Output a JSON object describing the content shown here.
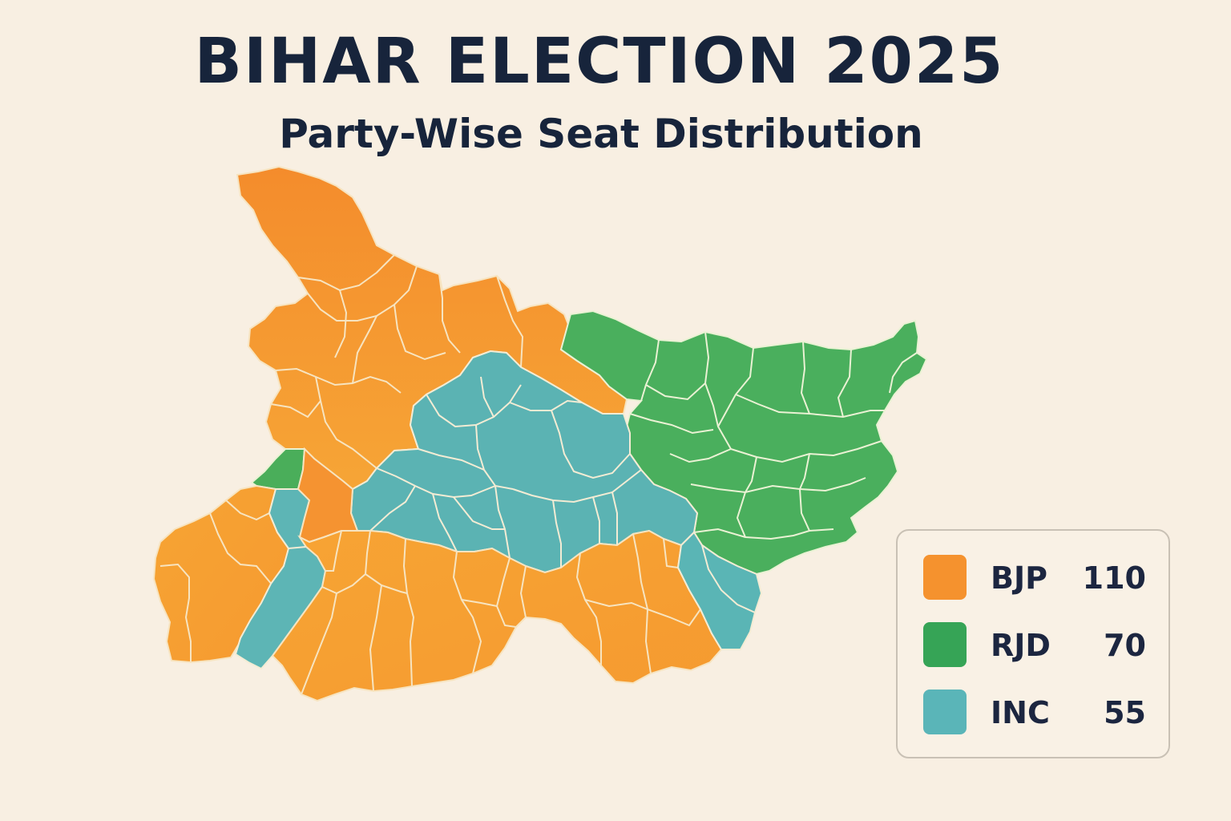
{
  "header": {
    "title": "BIHAR ELECTION 2025",
    "subtitle": "Party-Wise Seat Distribution"
  },
  "colors": {
    "background": "#f8efe2",
    "bjp": "#f5922e",
    "rjd": "#42a95a",
    "inc": "#57b2b6",
    "boundary": "#f7e7c8",
    "title_text": "#17243b"
  },
  "map": {
    "regions": [
      {
        "party": "BJP",
        "zone": "northwest"
      },
      {
        "party": "RJD",
        "zone": "north-east"
      },
      {
        "party": "INC",
        "zone": "central"
      },
      {
        "party": "BJP",
        "zone": "south-west"
      },
      {
        "party": "INC",
        "zone": "west-strip"
      },
      {
        "party": "RJD",
        "zone": "west-enclave"
      },
      {
        "party": "BJP",
        "zone": "south"
      },
      {
        "party": "INC",
        "zone": "south-east"
      }
    ]
  },
  "legend": {
    "items": [
      {
        "party": "BJP",
        "seats": "110",
        "color": "#f5922e"
      },
      {
        "party": "RJD",
        "seats": "70",
        "color": "#36a456"
      },
      {
        "party": "INC",
        "seats": "55",
        "color": "#5ab5b8"
      }
    ]
  }
}
